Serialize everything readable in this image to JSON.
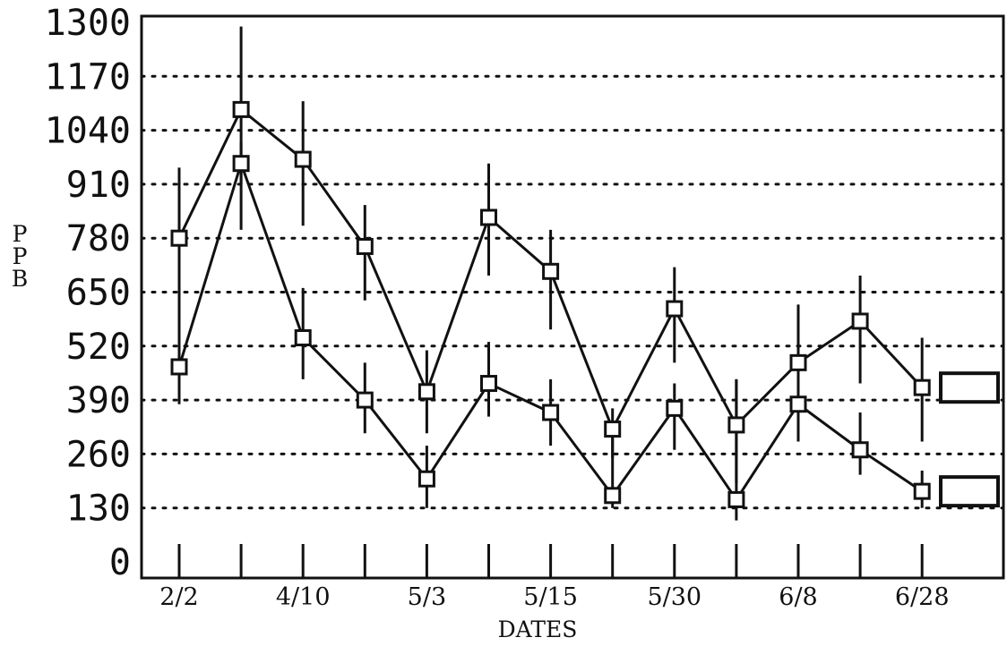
{
  "chart_data": {
    "type": "line",
    "title": "",
    "xlabel": "DATES",
    "ylabel": "PPB",
    "ylim": [
      0,
      1300
    ],
    "yticks": [
      0,
      130,
      260,
      390,
      520,
      650,
      780,
      910,
      1040,
      1170,
      1300
    ],
    "x": [
      "2/2",
      "",
      "4/10",
      "",
      "5/3",
      "",
      "5/15",
      "",
      "5/30",
      "",
      "6/8",
      "",
      "6/28"
    ],
    "x_tick_labels": [
      "2/2",
      "4/10",
      "5/3",
      "5/15",
      "5/30",
      "6/8",
      "6/28"
    ],
    "grid": "horizontal dotted",
    "series": [
      {
        "name": "",
        "end_tag": "",
        "values": [
          780,
          1090,
          970,
          760,
          410,
          830,
          700,
          320,
          610,
          330,
          480,
          580,
          420
        ],
        "error_low": [
          500,
          910,
          810,
          630,
          310,
          690,
          560,
          250,
          480,
          190,
          320,
          430,
          290
        ],
        "error_high": [
          950,
          1290,
          1110,
          860,
          510,
          960,
          800,
          370,
          710,
          440,
          620,
          690,
          540
        ]
      },
      {
        "name": "",
        "end_tag": "",
        "values": [
          470,
          960,
          540,
          390,
          200,
          430,
          360,
          160,
          370,
          150,
          380,
          270,
          170
        ],
        "error_low": [
          380,
          800,
          440,
          310,
          130,
          350,
          280,
          130,
          270,
          100,
          290,
          210,
          130
        ],
        "error_high": [
          580,
          1010,
          660,
          480,
          280,
          530,
          440,
          300,
          430,
          440,
          490,
          360,
          220
        ]
      }
    ],
    "colors": {
      "line": "#111111",
      "grid": "#111111",
      "background": "#ffffff"
    }
  }
}
